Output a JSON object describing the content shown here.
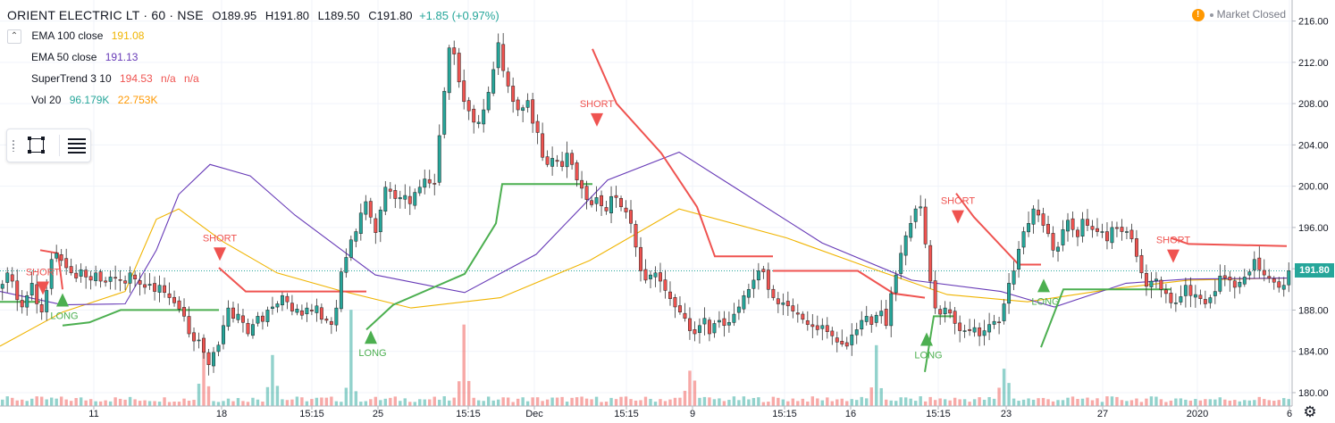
{
  "header": {
    "symbol": "ORIENT ELECTRIC LT · 60 · NSE",
    "open": "O189.95",
    "high": "H191.80",
    "low": "L189.50",
    "close": "C191.80",
    "change": "+1.85 (+0.97%)"
  },
  "indicators": [
    {
      "name": "EMA 100 close",
      "values": [
        "191.08"
      ],
      "colors": [
        "#f0b400"
      ]
    },
    {
      "name": "EMA 50 close",
      "values": [
        "191.13"
      ],
      "colors": [
        "#673ab7"
      ]
    },
    {
      "name": "SuperTrend 3 10",
      "values": [
        "194.53",
        "n/a",
        "n/a"
      ],
      "colors": [
        "#ef5350",
        "#ef5350",
        "#ef5350"
      ]
    },
    {
      "name": "Vol 20",
      "values": [
        "96.179K",
        "22.753K"
      ],
      "colors": [
        "#26a69a",
        "#ff9800"
      ]
    }
  ],
  "market_status": "Market Closed",
  "last_price": "191.80",
  "colors": {
    "up": "#26a69a",
    "down": "#ef5350",
    "ema100": "#f0b400",
    "ema50": "#673ab7",
    "st_up": "#4caf50",
    "st_down": "#ef5350"
  },
  "chart_data": {
    "type": "candlestick",
    "y_ticks": [
      "216.00",
      "212.00",
      "208.00",
      "204.00",
      "200.00",
      "196.00",
      "192.00",
      "188.00",
      "184.00",
      "180.00"
    ],
    "ylim": [
      178.7,
      217.0
    ],
    "x_ticks": [
      "11",
      "18",
      "15:15",
      "25",
      "15:15",
      "Dec",
      "15:15",
      "9",
      "15:15",
      "16",
      "15:15",
      "23",
      "27",
      "2020",
      "6"
    ],
    "price_series": [
      190.5,
      191.6,
      190.8,
      189.0,
      188.3,
      189.4,
      190.6,
      188.6,
      187.8,
      189.9,
      192.9,
      193.5,
      192.8,
      192.1,
      191.6,
      191.1,
      191.9,
      191.2,
      190.9,
      191.6,
      190.8,
      190.7,
      191.2,
      191.1,
      190.9,
      190.6,
      191.6,
      191.0,
      190.5,
      190.2,
      190.5,
      189.8,
      190.4,
      189.7,
      189.2,
      188.7,
      188.1,
      187.4,
      185.7,
      185.0,
      185.1,
      183.9,
      182.7,
      183.9,
      184.6,
      186.5,
      188.2,
      187.2,
      187.6,
      186.8,
      185.7,
      186.6,
      187.4,
      186.9,
      188.0,
      188.3,
      188.6,
      189.4,
      188.8,
      187.9,
      188.1,
      187.5,
      188.2,
      187.9,
      188.4,
      187.1,
      187.0,
      186.6,
      188.2,
      191.7,
      193.1,
      194.8,
      195.6,
      197.4,
      198.5,
      197.0,
      195.5,
      197.7,
      199.9,
      199.5,
      198.8,
      198.9,
      199.1,
      198.3,
      199.4,
      199.9,
      200.7,
      200.3,
      200.2,
      204.9,
      209.2,
      213.4,
      212.8,
      210.1,
      208.2,
      207.3,
      206.2,
      206.2,
      207.4,
      209.1,
      211.3,
      213.9,
      211.2,
      209.7,
      208.2,
      207.4,
      207.6,
      208.3,
      206.1,
      205.2,
      202.8,
      202.1,
      202.7,
      202.4,
      201.9,
      203.2,
      202.1,
      200.6,
      199.8,
      198.7,
      198.2,
      198.9,
      198.1,
      197.6,
      199.0,
      198.9,
      198.0,
      197.5,
      196.4,
      194.1,
      191.8,
      190.9,
      191.4,
      191.6,
      190.8,
      189.9,
      189.1,
      188.3,
      187.8,
      187.2,
      186.0,
      185.7,
      186.5,
      187.2,
      185.7,
      186.7,
      187.0,
      186.5,
      186.8,
      187.6,
      188.3,
      189.4,
      190.0,
      190.9,
      191.8,
      191.7,
      190.0,
      189.2,
      188.6,
      188.7,
      188.4,
      187.9,
      187.6,
      187.1,
      186.6,
      186.4,
      186.1,
      186.5,
      185.9,
      185.5,
      184.9,
      184.7,
      184.5,
      185.6,
      186.1,
      187.0,
      187.4,
      186.6,
      187.5,
      187.9,
      186.5,
      189.6,
      191.4,
      193.5,
      195.2,
      196.4,
      197.8,
      198.0,
      194.4,
      190.8,
      188.2,
      187.6,
      188.2,
      187.7,
      186.7,
      186.0,
      186.0,
      186.0,
      186.3,
      185.5,
      186.0,
      186.6,
      186.9,
      186.8,
      188.6,
      190.6,
      191.8,
      193.9,
      195.6,
      196.4,
      197.8,
      197.2,
      196.2,
      195.4,
      193.8,
      194.1,
      195.8,
      196.7,
      195.8,
      195.1,
      196.8,
      196.2,
      195.8,
      195.6,
      195.6,
      194.7,
      196.0,
      195.9,
      195.6,
      195.6,
      194.9,
      193.2,
      191.6,
      190.3,
      190.8,
      191.0,
      190.0,
      189.6,
      188.7,
      188.7,
      189.3,
      190.4,
      189.4,
      189.5,
      189.1,
      188.6,
      189.2,
      189.8,
      191.3,
      191.1,
      190.9,
      190.2,
      190.7,
      191.2,
      191.7,
      192.9,
      191.9,
      191.4,
      191.1,
      190.7,
      190.2,
      190.4,
      191.8
    ],
    "volume_peaks": [
      {
        "i": 41,
        "v": 0.58
      },
      {
        "i": 55,
        "v": 0.52
      },
      {
        "i": 71,
        "v": 0.98
      },
      {
        "i": 94,
        "v": 0.83
      },
      {
        "i": 140,
        "v": 0.36
      },
      {
        "i": 178,
        "v": 0.62
      },
      {
        "i": 204,
        "v": 0.38
      }
    ],
    "ema100": [
      [
        0,
        184.5
      ],
      [
        70,
        187.8
      ],
      [
        140,
        189.8
      ],
      [
        175,
        196.8
      ],
      [
        200,
        197.8
      ],
      [
        250,
        194.6
      ],
      [
        310,
        191.6
      ],
      [
        380,
        189.9
      ],
      [
        460,
        188.2
      ],
      [
        560,
        189.2
      ],
      [
        660,
        192.8
      ],
      [
        760,
        197.8
      ],
      [
        880,
        195.0
      ],
      [
        970,
        192.2
      ],
      [
        1060,
        189.5
      ],
      [
        1150,
        188.8
      ],
      [
        1250,
        190.1
      ],
      [
        1330,
        190.9
      ],
      [
        1440,
        191.1
      ]
    ],
    "ema50": [
      [
        0,
        189.8
      ],
      [
        70,
        188.5
      ],
      [
        140,
        188.6
      ],
      [
        175,
        193.8
      ],
      [
        200,
        199.2
      ],
      [
        235,
        202.1
      ],
      [
        280,
        201.0
      ],
      [
        330,
        197.2
      ],
      [
        420,
        191.4
      ],
      [
        520,
        189.7
      ],
      [
        600,
        193.4
      ],
      [
        680,
        200.6
      ],
      [
        760,
        203.3
      ],
      [
        820,
        200.0
      ],
      [
        920,
        194.5
      ],
      [
        1020,
        190.9
      ],
      [
        1120,
        189.8
      ],
      [
        1180,
        188.3
      ],
      [
        1260,
        190.6
      ],
      [
        1330,
        191.0
      ],
      [
        1440,
        191.1
      ]
    ],
    "supertrend_segments": [
      {
        "trend": "up",
        "pts": [
          [
            0,
            188.8
          ],
          [
            45,
            188.8
          ]
        ]
      },
      {
        "trend": "down",
        "pts": [
          [
            45,
            193.8
          ],
          [
            65,
            193.5
          ],
          [
            70,
            190.0
          ]
        ]
      },
      {
        "trend": "up",
        "pts": [
          [
            70,
            186.5
          ],
          [
            100,
            186.8
          ],
          [
            135,
            188.0
          ],
          [
            245,
            188.0
          ]
        ]
      },
      {
        "trend": "down",
        "pts": [
          [
            245,
            192.1
          ],
          [
            275,
            189.8
          ],
          [
            410,
            189.8
          ]
        ]
      },
      {
        "trend": "up",
        "pts": [
          [
            410,
            186.1
          ],
          [
            440,
            188.5
          ],
          [
            520,
            191.5
          ],
          [
            555,
            196.4
          ],
          [
            562,
            200.2
          ],
          [
            663,
            200.2
          ]
        ]
      },
      {
        "trend": "down",
        "pts": [
          [
            663,
            213.3
          ],
          [
            690,
            208.0
          ],
          [
            740,
            203.2
          ],
          [
            780,
            198.0
          ],
          [
            800,
            193.2
          ],
          [
            865,
            193.2
          ]
        ]
      },
      {
        "trend": "down",
        "pts": [
          [
            865,
            191.8
          ],
          [
            960,
            191.8
          ],
          [
            1000,
            189.6
          ],
          [
            1035,
            189.2
          ]
        ]
      },
      {
        "trend": "up",
        "pts": [
          [
            1035,
            182.0
          ],
          [
            1045,
            187.4
          ],
          [
            1070,
            187.4
          ]
        ]
      },
      {
        "trend": "down",
        "pts": [
          [
            1070,
            199.3
          ],
          [
            1090,
            197.0
          ],
          [
            1140,
            192.4
          ],
          [
            1165,
            192.4
          ]
        ]
      },
      {
        "trend": "up",
        "pts": [
          [
            1165,
            184.4
          ],
          [
            1190,
            190.0
          ],
          [
            1310,
            190.0
          ]
        ]
      },
      {
        "trend": "down",
        "pts": [
          [
            1310,
            195.0
          ],
          [
            1330,
            194.4
          ],
          [
            1440,
            194.2
          ]
        ]
      }
    ],
    "signals": [
      {
        "label": "SHORT",
        "type": "short",
        "x": 48,
        "price": 189.9
      },
      {
        "label": "LONG",
        "type": "long",
        "x": 70,
        "price": 189.2
      },
      {
        "label": "SHORT",
        "type": "short",
        "x": 246,
        "price": 193.2
      },
      {
        "label": "LONG",
        "type": "long",
        "x": 415,
        "price": 185.6
      },
      {
        "label": "SHORT",
        "type": "short",
        "x": 668,
        "price": 206.2
      },
      {
        "label": "LONG",
        "type": "long",
        "x": 1037,
        "price": 185.4
      },
      {
        "label": "SHORT",
        "type": "short",
        "x": 1072,
        "price": 196.8
      },
      {
        "label": "LONG",
        "type": "long",
        "x": 1168,
        "price": 190.6
      },
      {
        "label": "SHORT",
        "type": "short",
        "x": 1313,
        "price": 193.0
      }
    ]
  }
}
